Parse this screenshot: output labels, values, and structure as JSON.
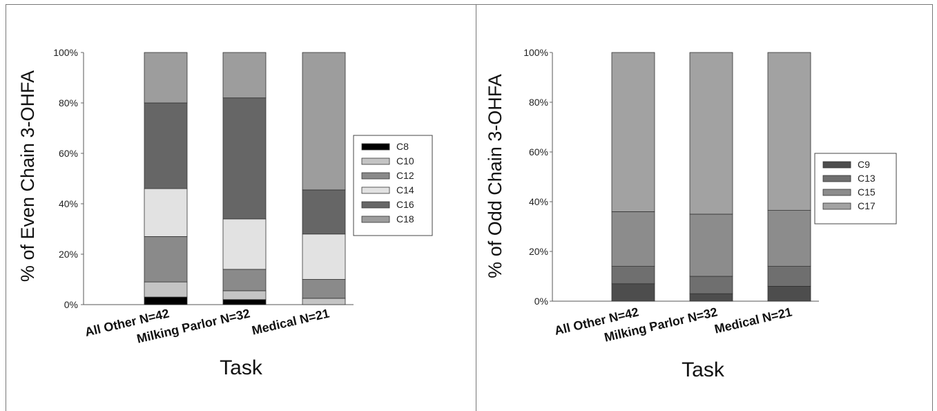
{
  "chart_data": [
    {
      "type": "bar",
      "stacked": true,
      "categories": [
        "All Other N=42",
        "Milking Parlor N=32",
        "Medical N=21"
      ],
      "xlabel": "Task",
      "ylabel": "% of Even Chain 3-OHFA",
      "ylim": [
        0,
        100
      ],
      "yticks": [
        "0%",
        "20%",
        "40%",
        "60%",
        "80%",
        "100%"
      ],
      "legend_position": "right",
      "series": [
        {
          "name": "C8",
          "color": "#000000",
          "values": [
            3,
            2,
            0
          ]
        },
        {
          "name": "C10",
          "color": "#c4c4c4",
          "values": [
            6,
            3.5,
            2.5
          ]
        },
        {
          "name": "C12",
          "color": "#8a8a8a",
          "values": [
            18,
            8.5,
            7.5
          ]
        },
        {
          "name": "C14",
          "color": "#e2e2e2",
          "values": [
            19,
            20,
            18
          ]
        },
        {
          "name": "C16",
          "color": "#666666",
          "values": [
            34,
            48,
            17.5
          ]
        },
        {
          "name": "C18",
          "color": "#9d9d9d",
          "values": [
            20,
            18,
            54.5
          ]
        }
      ]
    },
    {
      "type": "bar",
      "stacked": true,
      "categories": [
        "All Other N=42",
        "Milking Parlor N=32",
        "Medical N=21"
      ],
      "xlabel": "Task",
      "ylabel": "% of Odd Chain 3-OHFA",
      "ylim": [
        0,
        100
      ],
      "yticks": [
        "0%",
        "20%",
        "40%",
        "60%",
        "80%",
        "100%"
      ],
      "legend_position": "right",
      "series": [
        {
          "name": "C9",
          "color": "#4d4d4d",
          "values": [
            7,
            3,
            6
          ]
        },
        {
          "name": "C13",
          "color": "#6f6f6f",
          "values": [
            7,
            7,
            8
          ]
        },
        {
          "name": "C15",
          "color": "#8c8c8c",
          "values": [
            22,
            25,
            22.5
          ]
        },
        {
          "name": "C17",
          "color": "#a2a2a2",
          "values": [
            64,
            65,
            63.5
          ]
        }
      ]
    }
  ]
}
